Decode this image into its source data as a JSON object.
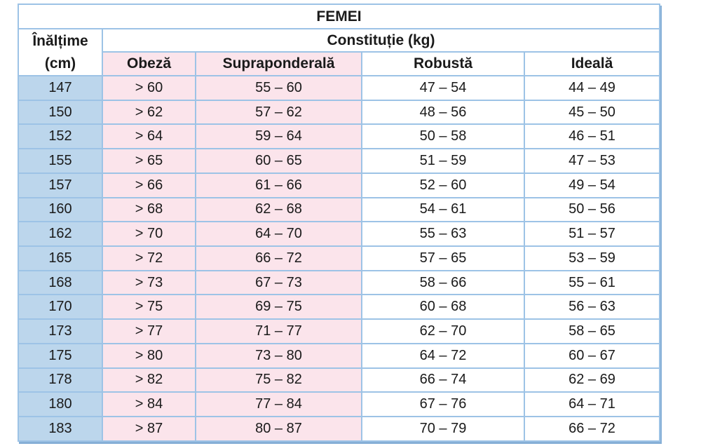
{
  "title": "FEMEI",
  "header": {
    "height_line1": "Înălțime",
    "height_line2": "(cm)",
    "constitution": "Constituție (kg)",
    "columns": [
      "Obeză",
      "Supraponderală",
      "Robustă",
      "Ideală"
    ]
  },
  "colors": {
    "cell_blue": "#BCD6EC",
    "cell_pink": "#FBE4EB",
    "grid_border": "#9DC3E6",
    "outer_shadow": "#86AFD6",
    "text": "#1A1A1A"
  },
  "table": {
    "rows": [
      {
        "height": "147",
        "obese": "> 60",
        "overweight": "55 – 60",
        "robust": "47 – 54",
        "ideal": "44 – 49"
      },
      {
        "height": "150",
        "obese": "> 62",
        "overweight": "57 – 62",
        "robust": "48 – 56",
        "ideal": "45 – 50"
      },
      {
        "height": "152",
        "obese": "> 64",
        "overweight": "59 – 64",
        "robust": "50 – 58",
        "ideal": "46 – 51"
      },
      {
        "height": "155",
        "obese": "> 65",
        "overweight": "60 – 65",
        "robust": "51 – 59",
        "ideal": "47 – 53"
      },
      {
        "height": "157",
        "obese": "> 66",
        "overweight": "61 – 66",
        "robust": "52 – 60",
        "ideal": "49 – 54"
      },
      {
        "height": "160",
        "obese": "> 68",
        "overweight": "62 – 68",
        "robust": "54 – 61",
        "ideal": "50 – 56"
      },
      {
        "height": "162",
        "obese": "> 70",
        "overweight": "64 – 70",
        "robust": "55 – 63",
        "ideal": "51 – 57"
      },
      {
        "height": "165",
        "obese": "> 72",
        "overweight": "66 – 72",
        "robust": "57 – 65",
        "ideal": "53 – 59"
      },
      {
        "height": "168",
        "obese": "> 73",
        "overweight": "67 – 73",
        "robust": "58 – 66",
        "ideal": "55 – 61"
      },
      {
        "height": "170",
        "obese": "> 75",
        "overweight": "69 – 75",
        "robust": "60 – 68",
        "ideal": "56 – 63"
      },
      {
        "height": "173",
        "obese": "> 77",
        "overweight": "71 – 77",
        "robust": "62 – 70",
        "ideal": "58 – 65"
      },
      {
        "height": "175",
        "obese": "> 80",
        "overweight": "73 – 80",
        "robust": "64 – 72",
        "ideal": "60 – 67"
      },
      {
        "height": "178",
        "obese": "> 82",
        "overweight": "75 – 82",
        "robust": "66 – 74",
        "ideal": "62 – 69"
      },
      {
        "height": "180",
        "obese": "> 84",
        "overweight": "77 – 84",
        "robust": "67 – 76",
        "ideal": "64 – 71"
      },
      {
        "height": "183",
        "obese": "> 87",
        "overweight": "80 – 87",
        "robust": "70 – 79",
        "ideal": "66 – 72"
      }
    ]
  }
}
